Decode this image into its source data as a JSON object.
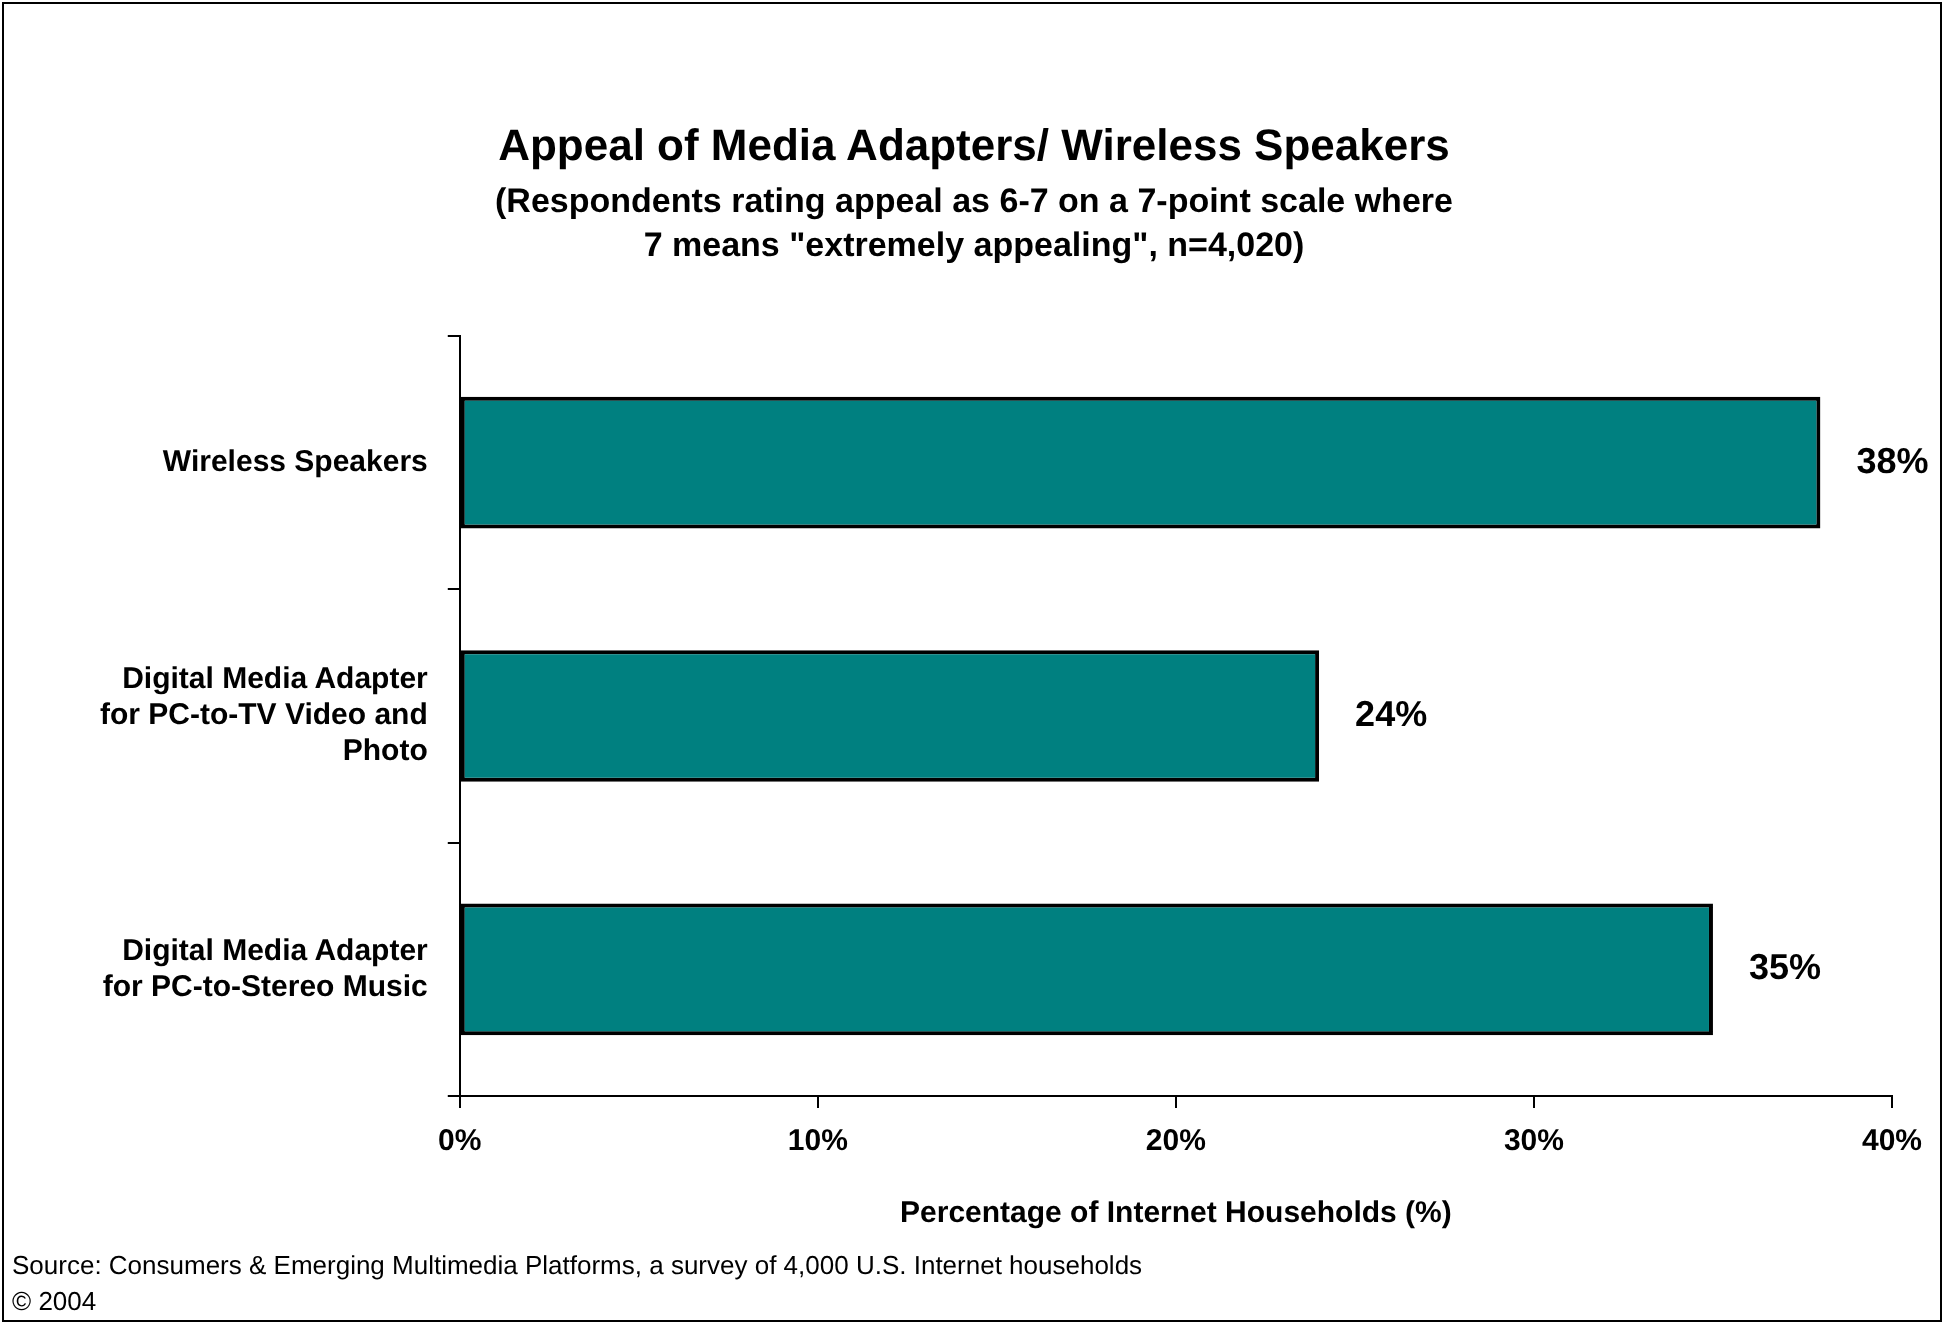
{
  "chart_data": {
    "type": "bar",
    "orientation": "horizontal",
    "title": "Appeal of Media Adapters/ Wireless Speakers",
    "subtitle": "(Respondents rating appeal as 6-7 on a 7-point scale where 7 means \"extremely appealing\", n=4,020)",
    "categories": [
      "Wireless Speakers",
      "Digital Media Adapter for PC-to-TV Video and Photo",
      "Digital Media Adapter for PC-to-Stereo Music"
    ],
    "values": [
      38,
      24,
      35
    ],
    "color": "#008080",
    "xlim": [
      0,
      40
    ],
    "xticks": [
      {
        "value": 0,
        "label": "0%"
      },
      {
        "value": 10,
        "label": "10%"
      },
      {
        "value": 20,
        "label": "20%"
      },
      {
        "value": 30,
        "label": "30%"
      },
      {
        "value": 40,
        "label": "40%"
      }
    ],
    "xlabel": "Percentage of Internet Households (%)",
    "grid": false,
    "legend": false,
    "data_labels": true,
    "value_labels": [
      "38%",
      "24%",
      "35%"
    ],
    "annotations": [
      "Source: Consumers & Emerging Multimedia Platforms, a survey of 4,000 U.S. Internet households",
      "© 2004"
    ]
  }
}
